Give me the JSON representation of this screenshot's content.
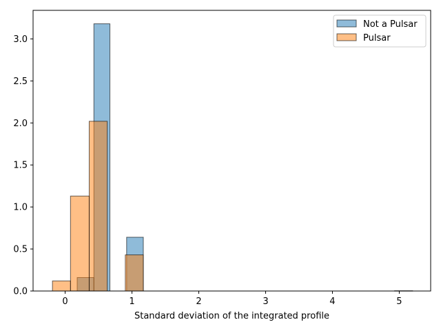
{
  "chart_data": {
    "type": "bar",
    "title": "",
    "xlabel": "Standard deviation of the integrated profile",
    "ylabel": "",
    "xlim": [
      -0.48,
      5.47
    ],
    "ylim": [
      0,
      3.34
    ],
    "xticks": [
      0,
      1,
      2,
      3,
      4,
      5
    ],
    "yticks": [
      0.0,
      0.5,
      1.0,
      1.5,
      2.0,
      2.5,
      3.0
    ],
    "grid": false,
    "legend_position": "top-right",
    "series": [
      {
        "name": "Not a Pulsar",
        "color": "#1f77b4",
        "bins": [
          {
            "x0": 0.18,
            "x1": 0.43,
            "value": 0.16
          },
          {
            "x0": 0.43,
            "x1": 0.67,
            "value": 3.18
          },
          {
            "x0": 0.92,
            "x1": 1.17,
            "value": 0.64
          },
          {
            "x0": 4.93,
            "x1": 5.2,
            "value": 0.003
          }
        ]
      },
      {
        "name": "Pulsar",
        "color": "#ff7f0e",
        "bins": [
          {
            "x0": -0.19,
            "x1": 0.08,
            "value": 0.12
          },
          {
            "x0": 0.08,
            "x1": 0.36,
            "value": 1.13
          },
          {
            "x0": 0.36,
            "x1": 0.63,
            "value": 2.02
          },
          {
            "x0": 0.9,
            "x1": 1.17,
            "value": 0.43
          }
        ]
      }
    ]
  }
}
